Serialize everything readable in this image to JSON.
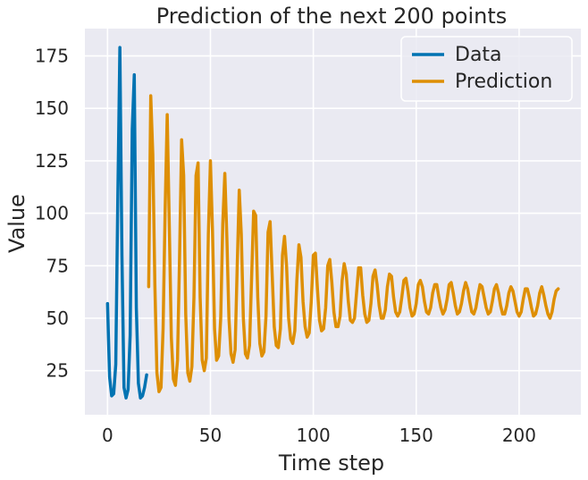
{
  "chart_data": {
    "type": "line",
    "title": "Prediction of the next 200 points",
    "xlabel": "Time step",
    "ylabel": "Value",
    "xlim": [
      -11,
      230
    ],
    "ylim": [
      4,
      188
    ],
    "xticks": [
      0,
      50,
      100,
      150,
      200
    ],
    "yticks": [
      25,
      50,
      75,
      100,
      125,
      150,
      175
    ],
    "grid": true,
    "legend_position": "top-right",
    "colors": {
      "Data": "#0173b2",
      "Prediction": "#de8f05",
      "background": "#eaeaf2",
      "grid": "#ffffff"
    },
    "series": [
      {
        "name": "Data",
        "x": [
          0,
          1,
          2,
          3,
          4,
          5,
          6,
          7,
          8,
          9,
          10,
          11,
          12,
          13,
          14,
          15,
          16,
          17,
          18,
          19
        ],
        "values": [
          57,
          22,
          13,
          14,
          28,
          108,
          179,
          80,
          17,
          12,
          16,
          42,
          140,
          166,
          55,
          19,
          12,
          13,
          17,
          23
        ]
      },
      {
        "name": "Prediction",
        "x": [
          20,
          21,
          22,
          23,
          24,
          25,
          26,
          27,
          28,
          29,
          30,
          31,
          32,
          33,
          34,
          35,
          36,
          37,
          38,
          39,
          40,
          41,
          42,
          43,
          44,
          45,
          46,
          47,
          48,
          49,
          50,
          51,
          52,
          53,
          54,
          55,
          56,
          57,
          58,
          59,
          60,
          61,
          62,
          63,
          64,
          65,
          66,
          67,
          68,
          69,
          70,
          71,
          72,
          73,
          74,
          75,
          76,
          77,
          78,
          79,
          80,
          81,
          82,
          83,
          84,
          85,
          86,
          87,
          88,
          89,
          90,
          91,
          92,
          93,
          94,
          95,
          96,
          97,
          98,
          99,
          100,
          101,
          102,
          103,
          104,
          105,
          106,
          107,
          108,
          109,
          110,
          111,
          112,
          113,
          114,
          115,
          116,
          117,
          118,
          119,
          120,
          121,
          122,
          123,
          124,
          125,
          126,
          127,
          128,
          129,
          130,
          131,
          132,
          133,
          134,
          135,
          136,
          137,
          138,
          139,
          140,
          141,
          142,
          143,
          144,
          145,
          146,
          147,
          148,
          149,
          150,
          151,
          152,
          153,
          154,
          155,
          156,
          157,
          158,
          159,
          160,
          161,
          162,
          163,
          164,
          165,
          166,
          167,
          168,
          169,
          170,
          171,
          172,
          173,
          174,
          175,
          176,
          177,
          178,
          179,
          180,
          181,
          182,
          183,
          184,
          185,
          186,
          187,
          188,
          189,
          190,
          191,
          192,
          193,
          194,
          195,
          196,
          197,
          198,
          199,
          200,
          201,
          202,
          203,
          204,
          205,
          206,
          207,
          208,
          209,
          210,
          211,
          212,
          213,
          214,
          215,
          216,
          217,
          218,
          219
        ],
        "values": [
          65,
          156,
          128,
          66,
          24,
          15,
          17,
          45,
          102,
          147,
          95,
          41,
          21,
          18,
          30,
          79,
          135,
          118,
          52,
          24,
          20,
          27,
          60,
          118,
          124,
          60,
          30,
          25,
          31,
          90,
          125,
          92,
          45,
          30,
          32,
          50,
          95,
          119,
          88,
          50,
          33,
          29,
          35,
          74,
          111,
          90,
          50,
          33,
          31,
          37,
          69,
          101,
          99,
          60,
          38,
          32,
          34,
          51,
          91,
          96,
          71,
          46,
          37,
          36,
          45,
          80,
          89,
          75,
          50,
          40,
          38,
          44,
          68,
          85,
          79,
          58,
          46,
          41,
          43,
          58,
          80,
          81,
          64,
          49,
          44,
          45,
          55,
          75,
          78,
          67,
          53,
          46,
          46,
          51,
          68,
          76,
          71,
          58,
          49,
          48,
          50,
          62,
          74,
          74,
          61,
          52,
          48,
          49,
          57,
          70,
          73,
          66,
          56,
          50,
          50,
          54,
          65,
          71,
          70,
          60,
          53,
          51,
          53,
          60,
          68,
          69,
          63,
          55,
          51,
          52,
          57,
          66,
          68,
          65,
          58,
          53,
          52,
          55,
          62,
          66,
          66,
          60,
          55,
          52,
          54,
          59,
          66,
          67,
          62,
          56,
          52,
          53,
          57,
          63,
          67,
          64,
          58,
          53,
          52,
          55,
          61,
          66,
          65,
          60,
          55,
          52,
          53,
          58,
          64,
          66,
          62,
          56,
          52,
          52,
          56,
          62,
          65,
          63,
          58,
          53,
          51,
          53,
          59,
          64,
          64,
          60,
          55,
          51,
          52,
          56,
          62,
          65,
          61,
          56,
          52,
          50,
          53,
          59,
          63,
          64
        ]
      }
    ]
  }
}
